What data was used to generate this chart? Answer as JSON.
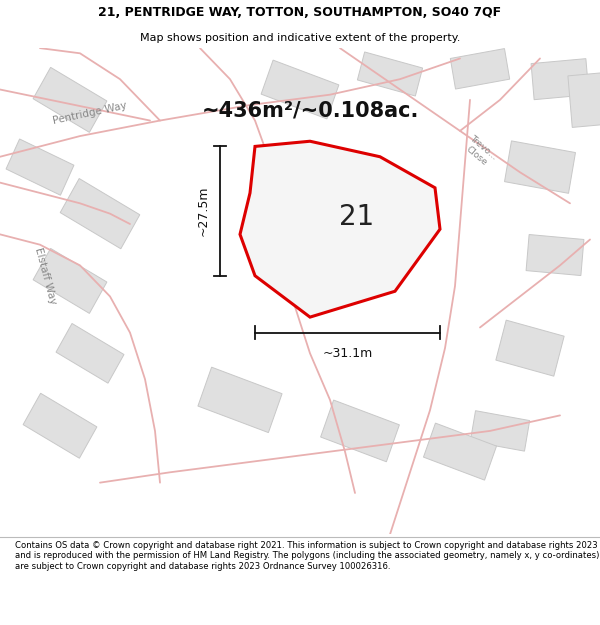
{
  "title_line1": "21, PENTRIDGE WAY, TOTTON, SOUTHAMPTON, SO40 7QF",
  "title_line2": "Map shows position and indicative extent of the property.",
  "area_label": "~436m²/~0.108ac.",
  "plot_number": "21",
  "dim_width": "~31.1m",
  "dim_height": "~27.5m",
  "footer_text": "Contains OS data © Crown copyright and database right 2021. This information is subject to Crown copyright and database rights 2023 and is reproduced with the permission of HM Land Registry. The polygons (including the associated geometry, namely x, y co-ordinates) are subject to Crown copyright and database rights 2023 Ordnance Survey 100026316.",
  "map_bg": "#f5f5f5",
  "plot_fill": "#f5f5f5",
  "plot_edge": "#dd0000",
  "road_color": "#e8b0b0",
  "road_lw": 1.3,
  "building_color": "#e0e0e0",
  "building_edge": "#c8c8c8",
  "title_bg": "#ffffff",
  "footer_bg": "#ffffff",
  "fig_bg": "#ffffff",
  "title_fontsize": 9.0,
  "subtitle_fontsize": 8.0,
  "area_fontsize": 15,
  "plot_num_fontsize": 20,
  "dim_fontsize": 9,
  "footer_fontsize": 6.1,
  "road_label_color": "#888888",
  "road_label_fs": 7.5,
  "dim_line_color": "#111111"
}
